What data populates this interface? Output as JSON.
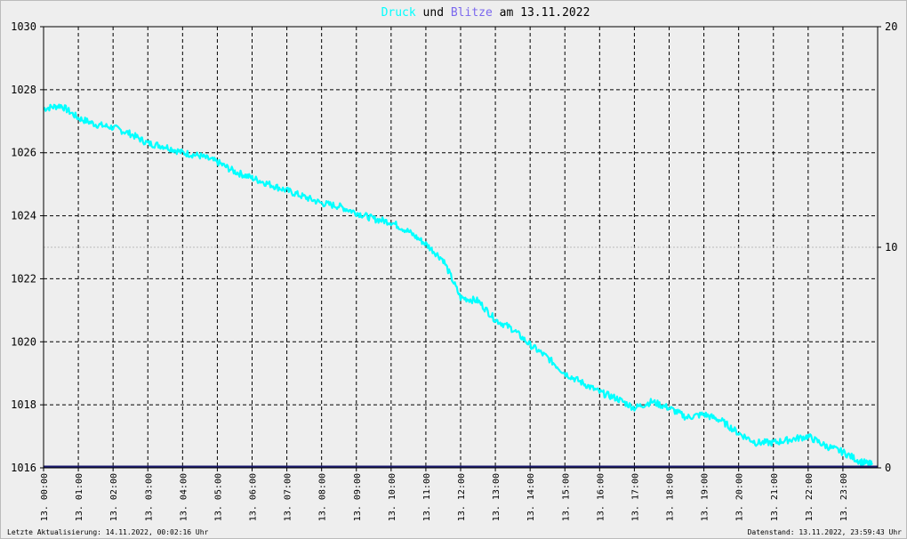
{
  "chart_data": {
    "type": "line",
    "title_parts": [
      {
        "text": "Druck",
        "color": "#00ffff"
      },
      {
        "text": " und ",
        "color": "#000000"
      },
      {
        "text": "Blitze",
        "color": "#7b68ee"
      },
      {
        "text": " am 13.11.2022",
        "color": "#000000"
      }
    ],
    "y_left": {
      "range": [
        1016,
        1030
      ],
      "ticks": [
        "1016",
        "1018",
        "1020",
        "1022",
        "1024",
        "1026",
        "1028",
        "1030"
      ]
    },
    "y_right": {
      "range": [
        0,
        20
      ],
      "ticks": [
        "0",
        "10",
        "20"
      ]
    },
    "x_range_hours": [
      0,
      24
    ],
    "x_ticks": [
      "13. 00:00",
      "13. 01:00",
      "13. 02:00",
      "13. 03:00",
      "13. 04:00",
      "13. 05:00",
      "13. 06:00",
      "13. 07:00",
      "13. 08:00",
      "13. 09:00",
      "13. 10:00",
      "13. 11:00",
      "13. 12:00",
      "13. 13:00",
      "13. 14:00",
      "13. 15:00",
      "13. 16:00",
      "13. 17:00",
      "13. 18:00",
      "13. 19:00",
      "13. 20:00",
      "13. 21:00",
      "13. 22:00",
      "13. 23:00"
    ],
    "grid": true,
    "series": [
      {
        "axis": "left",
        "color": "#00ffff",
        "x": [
          0,
          0.5,
          1,
          1.5,
          2,
          2.5,
          3,
          3.5,
          4,
          4.5,
          5,
          5.5,
          6,
          6.5,
          7,
          7.5,
          8,
          8.5,
          9,
          9.5,
          10,
          10.5,
          11,
          11.5,
          12,
          12.5,
          13,
          13.5,
          14,
          14.5,
          15,
          15.5,
          16,
          16.5,
          17,
          17.5,
          18,
          18.5,
          19,
          19.5,
          20,
          20.5,
          21,
          21.5,
          22,
          22.5,
          23,
          23.5,
          23.85
        ],
        "y": [
          1027.4,
          1027.5,
          1027.1,
          1026.9,
          1026.8,
          1026.6,
          1026.3,
          1026.2,
          1026.0,
          1025.9,
          1025.7,
          1025.4,
          1025.2,
          1025.0,
          1024.8,
          1024.6,
          1024.4,
          1024.3,
          1024.1,
          1023.9,
          1023.8,
          1023.5,
          1023.1,
          1022.6,
          1021.4,
          1021.3,
          1020.7,
          1020.4,
          1019.9,
          1019.5,
          1019.0,
          1018.7,
          1018.4,
          1018.2,
          1017.9,
          1018.1,
          1017.9,
          1017.6,
          1017.7,
          1017.5,
          1017.1,
          1016.8,
          1016.8,
          1016.9,
          1017.0,
          1016.7,
          1016.5,
          1016.2,
          1016.1
        ]
      },
      {
        "axis": "right",
        "color": "#1a1a6e",
        "x": [
          0,
          24
        ],
        "y": [
          0,
          0
        ]
      }
    ]
  },
  "footer": {
    "left": "Letzte Aktualisierung: 14.11.2022, 00:02:16 Uhr",
    "right": "Datenstand: 13.11.2022, 23:59:43 Uhr"
  }
}
